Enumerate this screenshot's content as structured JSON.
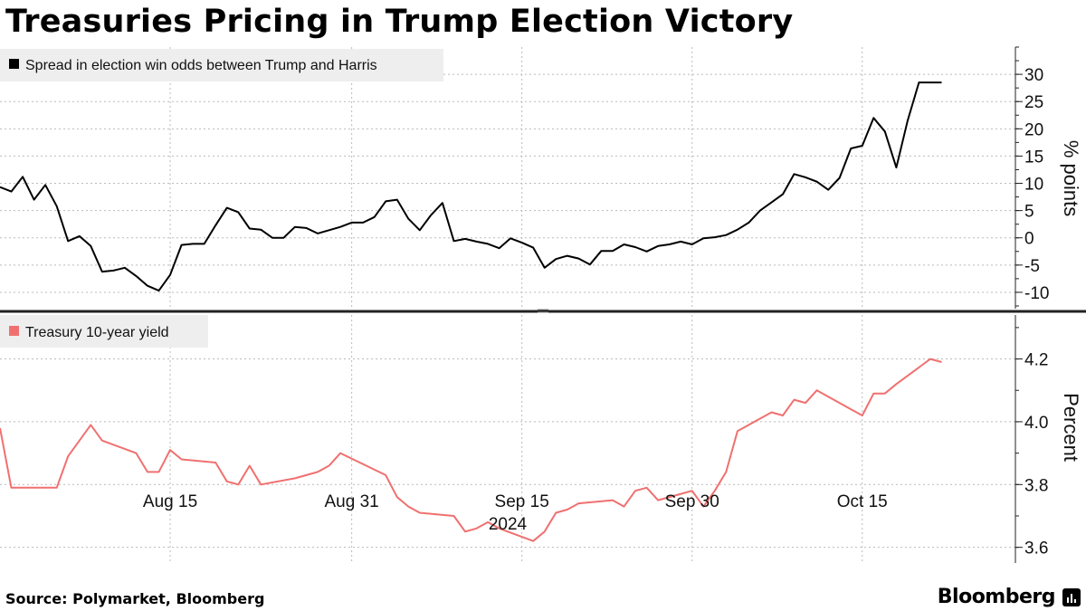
{
  "title": "Treasuries Pricing in Trump Election Victory",
  "source": "Source: Polymarket, Bloomberg",
  "brand": "Bloomberg",
  "brand_icon": "bloomberg-terminal-icon",
  "colors": {
    "odds_line": "#000000",
    "yield_line": "#f07070",
    "grid": "#bbbbbb",
    "legend_bg": "#eeeeee",
    "divider": "#222222"
  },
  "chart_data": [
    {
      "type": "line",
      "panel": "top",
      "legend": "Spread in election win odds between Trump and Harris",
      "ylabel": "% points",
      "ylim": [
        -13,
        35
      ],
      "yticks": [
        -10,
        -5,
        0,
        5,
        10,
        15,
        20,
        25,
        30
      ],
      "ytick_labels": [
        "-10",
        "-5",
        "0",
        "5",
        "10",
        "15",
        "20",
        "25",
        "30"
      ],
      "x": [
        "2024-07-31",
        "2024-08-01",
        "2024-08-02",
        "2024-08-03",
        "2024-08-04",
        "2024-08-05",
        "2024-08-06",
        "2024-08-07",
        "2024-08-08",
        "2024-08-09",
        "2024-08-10",
        "2024-08-11",
        "2024-08-12",
        "2024-08-13",
        "2024-08-14",
        "2024-08-15",
        "2024-08-16",
        "2024-08-17",
        "2024-08-18",
        "2024-08-19",
        "2024-08-20",
        "2024-08-21",
        "2024-08-22",
        "2024-08-23",
        "2024-08-24",
        "2024-08-25",
        "2024-08-26",
        "2024-08-27",
        "2024-08-28",
        "2024-08-29",
        "2024-08-30",
        "2024-08-31",
        "2024-09-01",
        "2024-09-02",
        "2024-09-03",
        "2024-09-04",
        "2024-09-05",
        "2024-09-06",
        "2024-09-07",
        "2024-09-08",
        "2024-09-09",
        "2024-09-10",
        "2024-09-11",
        "2024-09-12",
        "2024-09-13",
        "2024-09-14",
        "2024-09-15",
        "2024-09-16",
        "2024-09-17",
        "2024-09-18",
        "2024-09-19",
        "2024-09-20",
        "2024-09-21",
        "2024-09-22",
        "2024-09-23",
        "2024-09-24",
        "2024-09-25",
        "2024-09-26",
        "2024-09-27",
        "2024-09-28",
        "2024-09-29",
        "2024-09-30",
        "2024-10-01",
        "2024-10-02",
        "2024-10-03",
        "2024-10-04",
        "2024-10-05",
        "2024-10-06",
        "2024-10-07",
        "2024-10-08",
        "2024-10-09",
        "2024-10-10",
        "2024-10-11",
        "2024-10-12",
        "2024-10-13",
        "2024-10-14",
        "2024-10-15",
        "2024-10-16",
        "2024-10-17",
        "2024-10-18",
        "2024-10-19",
        "2024-10-20",
        "2024-10-21",
        "2024-10-22"
      ],
      "values": [
        9.3,
        8.5,
        11.2,
        7.0,
        9.7,
        5.8,
        -0.6,
        0.3,
        -1.5,
        -6.2,
        -6.0,
        -5.5,
        -7.0,
        -8.8,
        -9.7,
        -6.8,
        -1.3,
        -1.1,
        -1.1,
        2.3,
        5.5,
        4.7,
        1.7,
        1.5,
        0.0,
        0.0,
        2.0,
        1.8,
        0.8,
        1.4,
        2.0,
        2.8,
        2.8,
        3.8,
        6.7,
        7.0,
        3.5,
        1.4,
        4.2,
        6.4,
        -0.6,
        -0.2,
        -0.7,
        -1.1,
        -1.9,
        -0.1,
        -0.9,
        -1.8,
        -5.5,
        -3.9,
        -3.3,
        -3.8,
        -4.9,
        -2.4,
        -2.4,
        -1.2,
        -1.7,
        -2.5,
        -1.5,
        -1.2,
        -0.7,
        -1.2,
        -0.1,
        0.1,
        0.5,
        1.5,
        2.8,
        5.0,
        6.5,
        8.0,
        11.7,
        11.1,
        10.3,
        8.8,
        11.0,
        16.4,
        16.9,
        22.0,
        19.5,
        12.9,
        21.5,
        28.5,
        28.5,
        28.5
      ]
    },
    {
      "type": "line",
      "panel": "bottom",
      "legend": "Treasury 10-year yield",
      "ylabel": "Percent",
      "ylim": [
        3.55,
        4.34
      ],
      "yticks": [
        3.6,
        3.8,
        4.0,
        4.2
      ],
      "ytick_labels": [
        "3.6",
        "3.8",
        "4.0",
        "4.2"
      ],
      "x": [
        "2024-07-31",
        "2024-08-01",
        "2024-08-02",
        "2024-08-05",
        "2024-08-06",
        "2024-08-07",
        "2024-08-08",
        "2024-08-09",
        "2024-08-12",
        "2024-08-13",
        "2024-08-14",
        "2024-08-15",
        "2024-08-16",
        "2024-08-19",
        "2024-08-20",
        "2024-08-21",
        "2024-08-22",
        "2024-08-23",
        "2024-08-26",
        "2024-08-27",
        "2024-08-28",
        "2024-08-29",
        "2024-08-30",
        "2024-09-03",
        "2024-09-04",
        "2024-09-05",
        "2024-09-06",
        "2024-09-09",
        "2024-09-10",
        "2024-09-11",
        "2024-09-12",
        "2024-09-13",
        "2024-09-16",
        "2024-09-17",
        "2024-09-18",
        "2024-09-19",
        "2024-09-20",
        "2024-09-23",
        "2024-09-24",
        "2024-09-25",
        "2024-09-26",
        "2024-09-27",
        "2024-09-30",
        "2024-10-01",
        "2024-10-02",
        "2024-10-03",
        "2024-10-04",
        "2024-10-07",
        "2024-10-08",
        "2024-10-09",
        "2024-10-10",
        "2024-10-11",
        "2024-10-14",
        "2024-10-15",
        "2024-10-16",
        "2024-10-17",
        "2024-10-18",
        "2024-10-21",
        "2024-10-22"
      ],
      "values": [
        3.98,
        3.79,
        3.79,
        3.79,
        3.89,
        3.94,
        3.99,
        3.94,
        3.9,
        3.84,
        3.84,
        3.91,
        3.88,
        3.87,
        3.81,
        3.8,
        3.86,
        3.8,
        3.82,
        3.83,
        3.84,
        3.86,
        3.9,
        3.83,
        3.76,
        3.73,
        3.71,
        3.7,
        3.65,
        3.66,
        3.68,
        3.66,
        3.62,
        3.65,
        3.71,
        3.72,
        3.74,
        3.75,
        3.73,
        3.78,
        3.79,
        3.75,
        3.78,
        3.73,
        3.78,
        3.84,
        3.97,
        4.03,
        4.02,
        4.07,
        4.06,
        4.1,
        4.04,
        4.02,
        4.09,
        4.09,
        4.12,
        4.2,
        4.19
      ]
    }
  ],
  "x_axis": {
    "ticks": [
      "2024-08-15",
      "2024-08-31",
      "2024-09-15",
      "2024-09-30",
      "2024-10-15"
    ],
    "tick_labels": [
      "Aug 15",
      "Aug 31",
      "Sep 15",
      "Sep 30",
      "Oct 15"
    ],
    "year_label": "2024"
  }
}
